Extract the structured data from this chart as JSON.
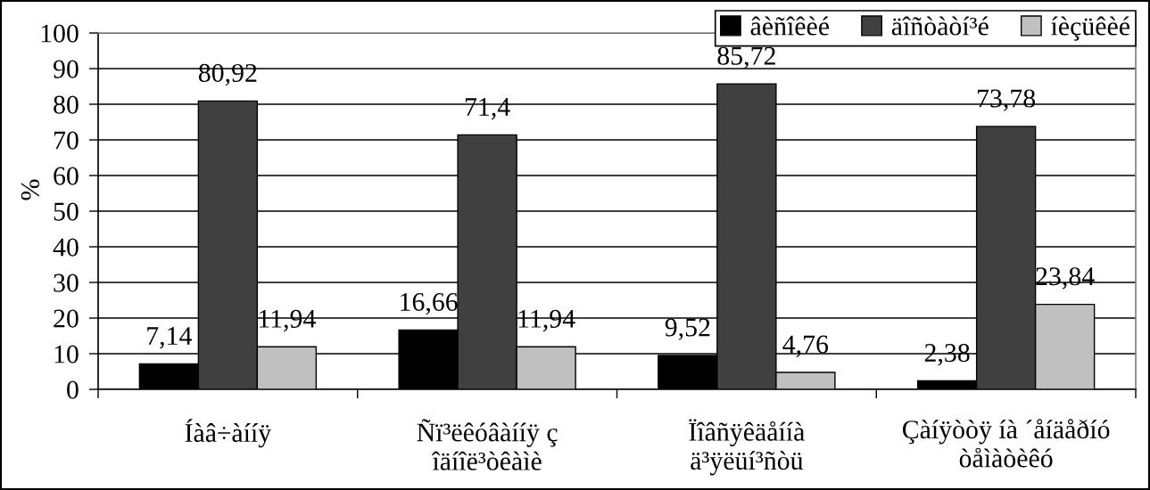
{
  "chart_data": {
    "type": "bar",
    "ylabel": "%",
    "categories": [
      "Íàâ÷àííÿ",
      "Ñï³ëêóâàííÿ ç\nîäíîë³òêàìè",
      "Ïîâñÿêäåííà\nä³ÿëüí³ñòü",
      "Çàíÿòòÿ íà ´åíäåðíó\nòåìàòèêó"
    ],
    "series": [
      {
        "name": "âèñîêèé",
        "color": "#000000",
        "values": [
          7.14,
          16.66,
          9.52,
          2.38
        ],
        "value_labels": [
          "7,14",
          "16,66",
          "9,52",
          "2,38"
        ]
      },
      {
        "name": "äîñòàòí³é",
        "color": "#404040",
        "values": [
          80.92,
          71.4,
          85.72,
          73.78
        ],
        "value_labels": [
          "80,92",
          "71,4",
          "85,72",
          "73,78"
        ]
      },
      {
        "name": "íèçüêèé",
        "color": "#c0c0c0",
        "values": [
          11.94,
          11.94,
          4.76,
          23.84
        ],
        "value_labels": [
          "11,94",
          "11,94",
          "4,76",
          "23,84"
        ]
      }
    ],
    "ylim": [
      0,
      100
    ],
    "yticks": [
      0,
      10,
      20,
      30,
      40,
      50,
      60,
      70,
      80,
      90,
      100
    ],
    "grid": "y",
    "legend": "top right"
  }
}
